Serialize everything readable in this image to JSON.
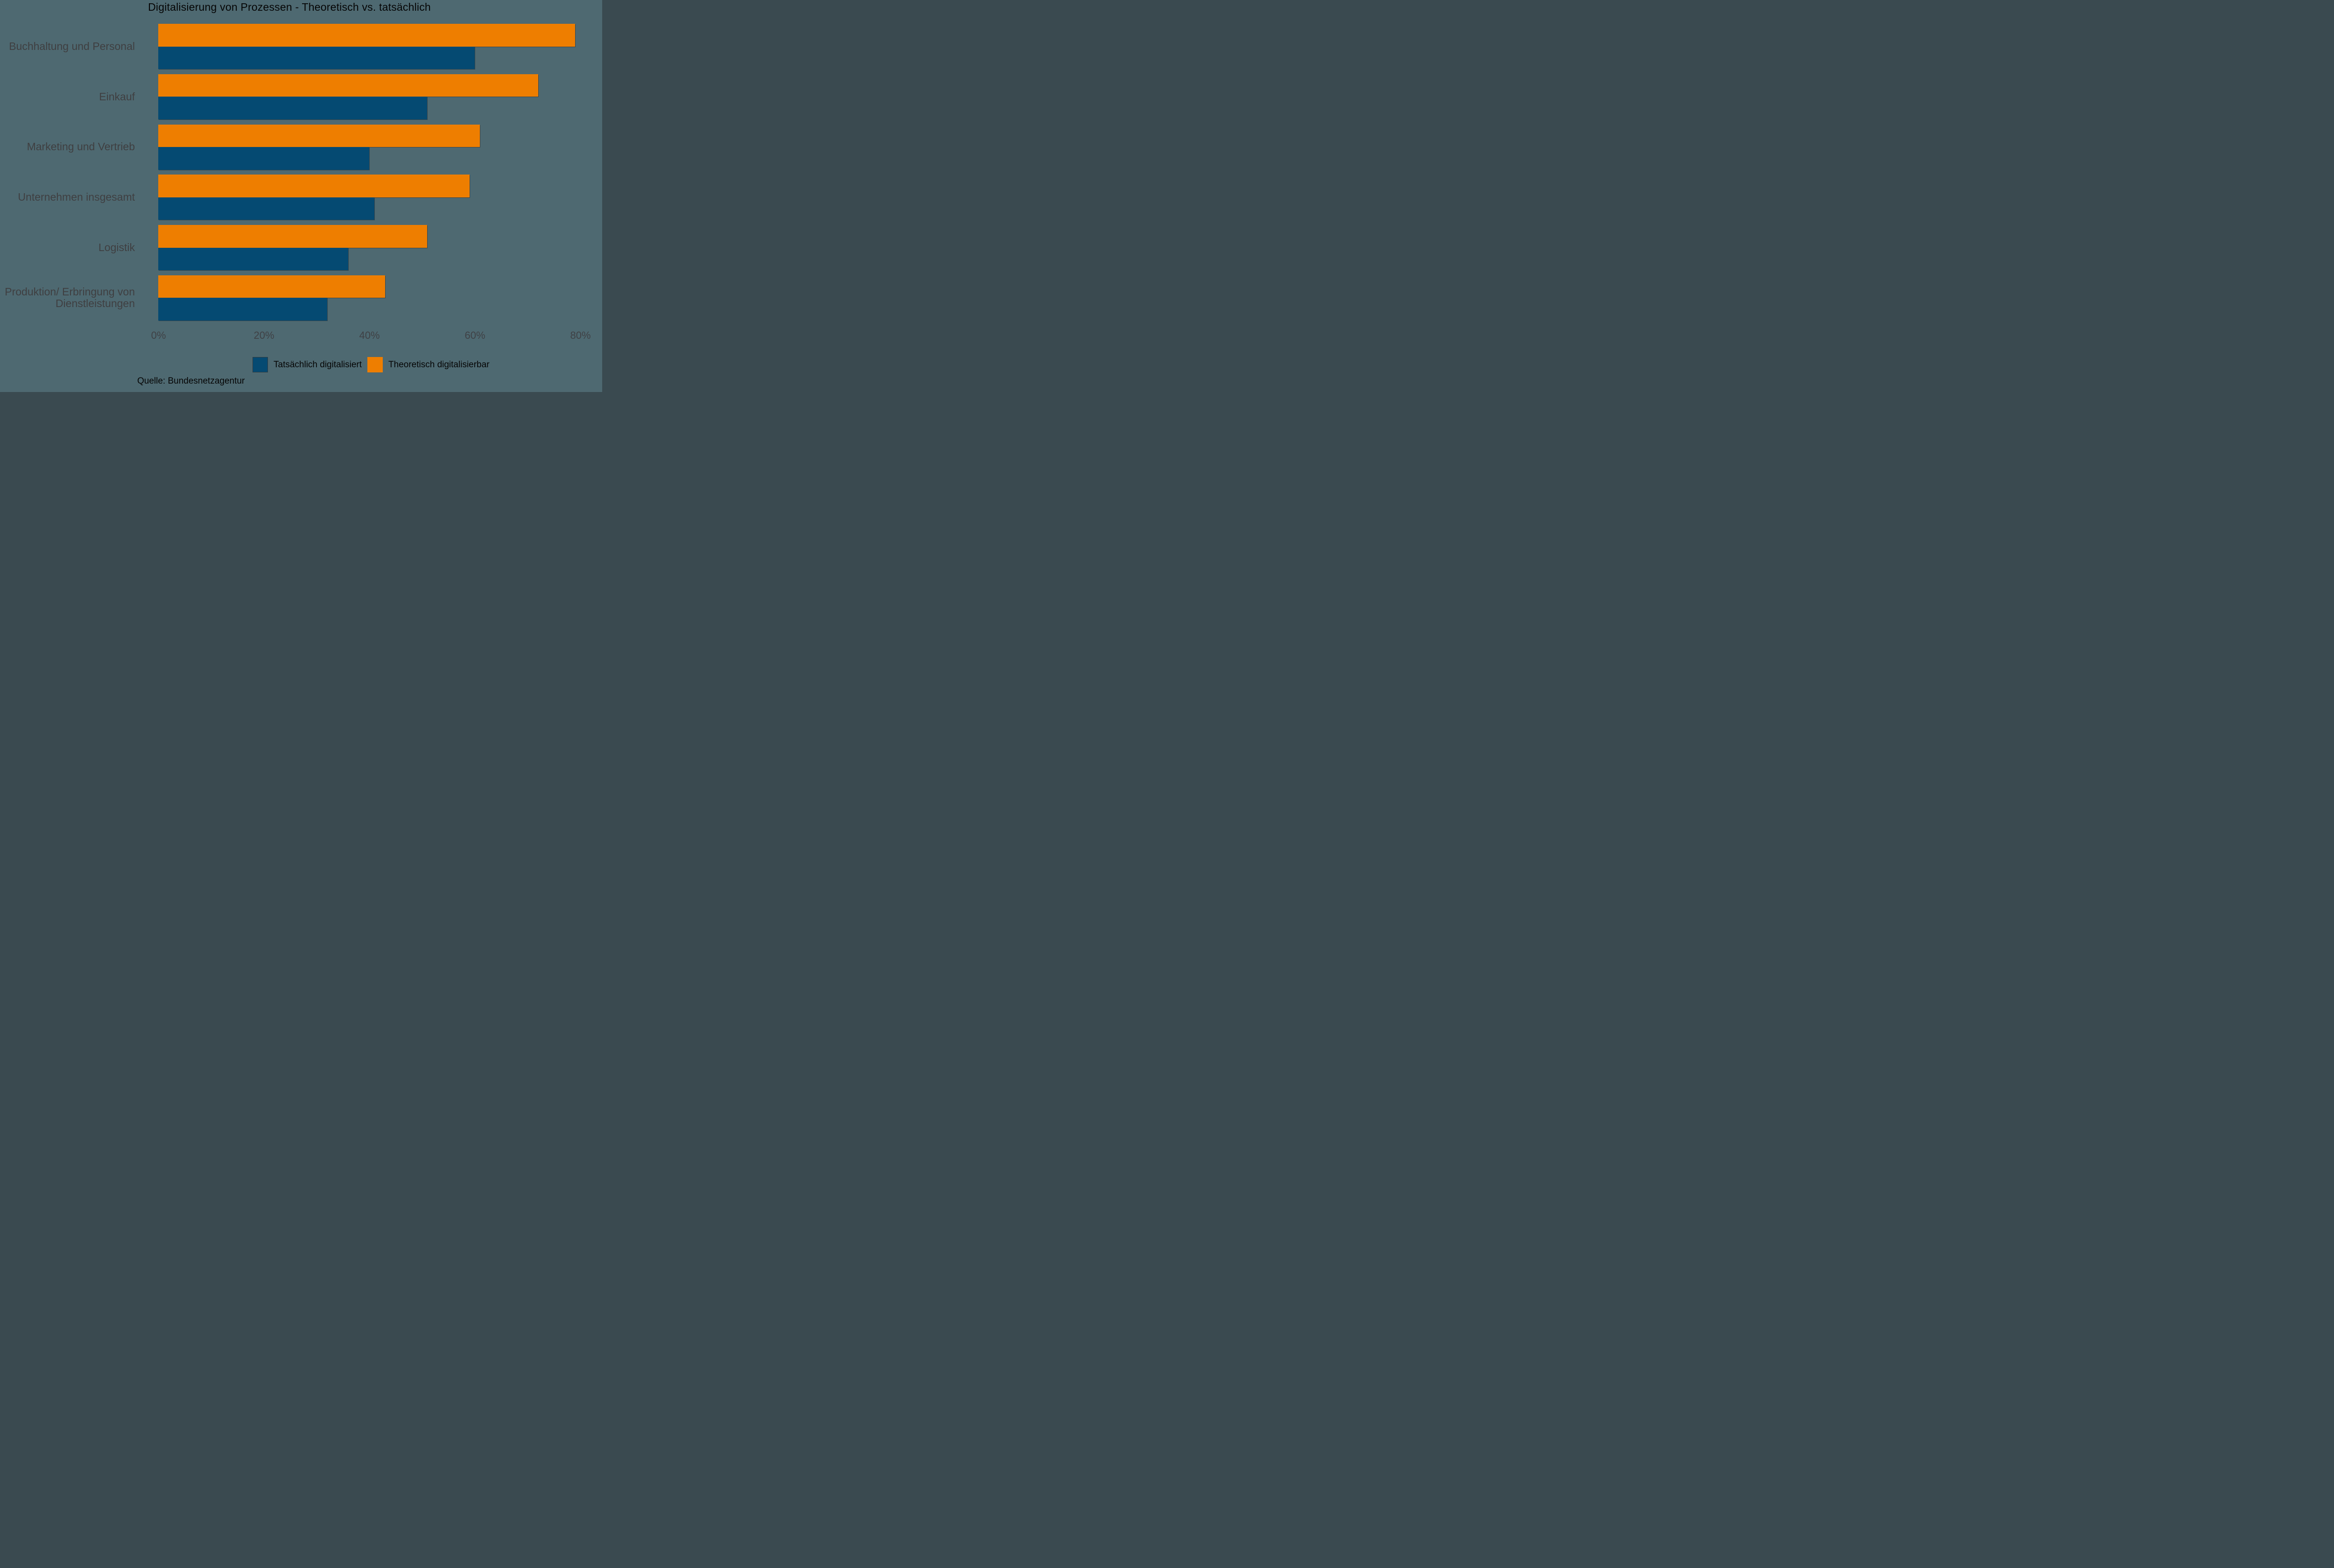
{
  "title": "Digitalisierung von Prozessen - Theoretisch vs. tatsächlich",
  "source": "Quelle: Bundesnetzagentur",
  "legend": [
    {
      "label": "Tatsächlich digitalisiert",
      "color": "#054A72"
    },
    {
      "label": "Theoretisch digitalisierbar",
      "color": "#EE7E00"
    }
  ],
  "colors": {
    "background": "#4E6971",
    "bar_blue": "#054A72",
    "bar_orange": "#EE7E00",
    "axis_label_gray": "#3F3F41",
    "text_black": "#050505"
  },
  "chart_data": {
    "type": "bar",
    "orientation": "horizontal",
    "title": "Digitalisierung von Prozessen - Theoretisch vs. tatsächlich",
    "categories": [
      "Buchhaltung und Personal",
      "Einkauf",
      "Marketing und Vertrieb",
      "Unternehmen insgesamt",
      "Logistik",
      "Produktion/ Erbringung von Dienstleistungen"
    ],
    "series": [
      {
        "name": "Theoretisch digitalisierbar",
        "color": "#EE7E00",
        "values": [
          79,
          72,
          61,
          59,
          51,
          43
        ]
      },
      {
        "name": "Tatsächlich digitalisiert",
        "color": "#054A72",
        "values": [
          60,
          51,
          40,
          41,
          36,
          32
        ]
      }
    ],
    "xlabel": "",
    "ylabel": "",
    "unit": "%",
    "xlim": [
      0,
      80
    ],
    "x_ticks": [
      "0%",
      "20%",
      "40%",
      "60%",
      "80%"
    ],
    "x_tick_values": [
      0,
      20,
      40,
      60,
      80
    ],
    "grid": false,
    "legend_position": "bottom",
    "bar_order_within_group": [
      "Theoretisch digitalisierbar",
      "Tatsächlich digitalisiert"
    ]
  }
}
